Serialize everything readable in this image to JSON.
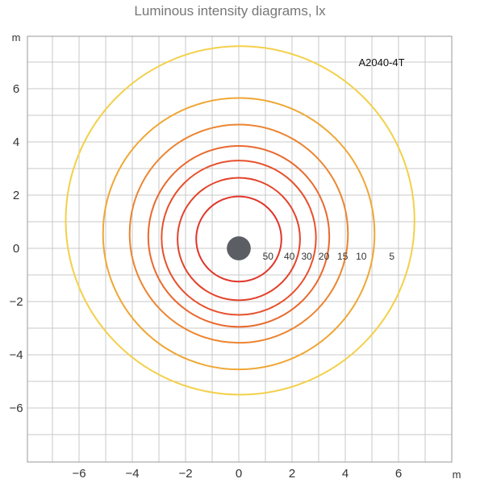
{
  "chart_data": {
    "type": "contour",
    "title": "Luminous intensity diagrams, lx",
    "model_label": "A2040-4T",
    "x_unit": "m",
    "y_unit": "m",
    "xlim": [
      -7.5,
      8
    ],
    "ylim": [
      -8,
      8
    ],
    "x_ticks": [
      -6,
      -4,
      -2,
      0,
      2,
      4,
      6
    ],
    "y_ticks": [
      6,
      4,
      2,
      0,
      -2,
      -4,
      -6
    ],
    "grid": true,
    "luminaire": {
      "x": 0,
      "y": 0,
      "radius": 0.45,
      "color": "#5b5e62"
    },
    "isolines": [
      {
        "lux": "50",
        "cx": 0,
        "cy": 0.35,
        "r": 1.6,
        "color": "#e0352b"
      },
      {
        "lux": "40",
        "cx": 0,
        "cy": 0.35,
        "r": 2.3,
        "color": "#e3432b"
      },
      {
        "lux": "30",
        "cx": 0,
        "cy": 0.4,
        "r": 2.9,
        "color": "#e6512c"
      },
      {
        "lux": "20",
        "cx": 0,
        "cy": 0.45,
        "r": 3.4,
        "color": "#e9692d"
      },
      {
        "lux": "15",
        "cx": 0,
        "cy": 0.55,
        "r": 4.1,
        "color": "#ec8531"
      },
      {
        "lux": "10",
        "cx": 0,
        "cy": 0.55,
        "r": 5.1,
        "color": "#efa735"
      },
      {
        "lux": "5",
        "cx": 0.05,
        "cy": 1.05,
        "r": 6.55,
        "color": "#f3d049"
      }
    ],
    "ring_label_positions": [
      {
        "lux": "50",
        "x": 1.1,
        "y": -0.3
      },
      {
        "lux": "40",
        "x": 1.9,
        "y": -0.3
      },
      {
        "lux": "30",
        "x": 2.55,
        "y": -0.3
      },
      {
        "lux": "20",
        "x": 3.2,
        "y": -0.3
      },
      {
        "lux": "15",
        "x": 3.9,
        "y": -0.3
      },
      {
        "lux": "10",
        "x": 4.6,
        "y": -0.3
      },
      {
        "lux": "5",
        "x": 5.75,
        "y": -0.3
      }
    ],
    "colors": {
      "grid": "#c8c8c8",
      "border": "#999999",
      "text": "#333333"
    }
  }
}
